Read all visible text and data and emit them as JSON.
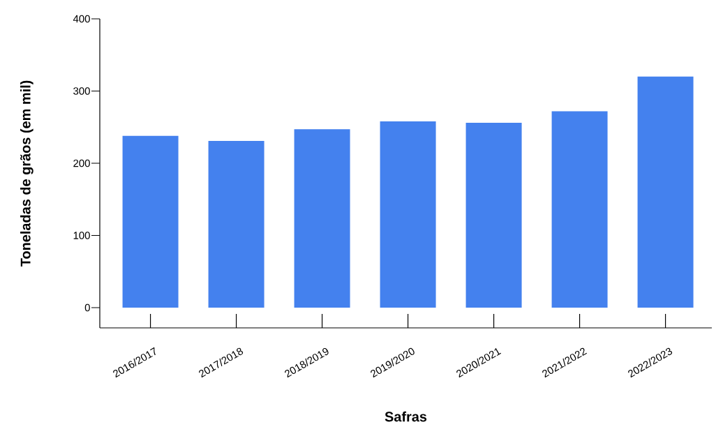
{
  "chart_data": {
    "type": "bar",
    "xlabel": "Safras",
    "ylabel": "Toneladas de grãos (em mil)",
    "categories": [
      "2016/2017",
      "2017/2018",
      "2018/2019",
      "2019/2020",
      "2020/2021",
      "2021/2022",
      "2022/2023"
    ],
    "values": [
      238,
      231,
      247,
      258,
      256,
      272,
      320
    ],
    "color": "#4481ee",
    "ylim": [
      -28,
      400
    ],
    "yticks": [
      0,
      100,
      200,
      300,
      400
    ],
    "grid": false
  }
}
